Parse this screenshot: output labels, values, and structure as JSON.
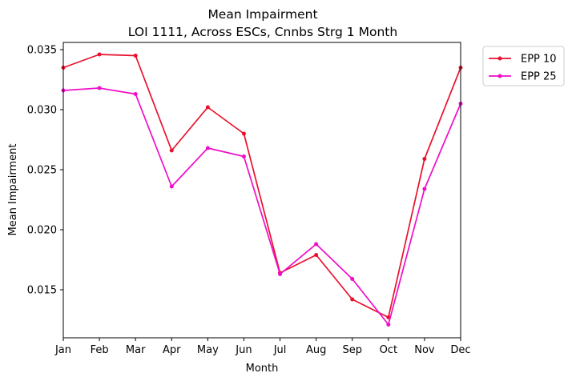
{
  "chart_data": {
    "type": "line",
    "title": "Mean Impairment",
    "subtitle": "LOI 1111, Across ESCs, Cnnbs Strg 1 Month",
    "xlabel": "Month",
    "ylabel": "Mean Impairment",
    "categories": [
      "Jan",
      "Feb",
      "Mar",
      "Apr",
      "May",
      "Jun",
      "Jul",
      "Aug",
      "Sep",
      "Oct",
      "Nov",
      "Dec"
    ],
    "ylim": [
      0.011,
      0.0356
    ],
    "yticks": [
      0.015,
      0.02,
      0.025,
      0.03,
      0.035
    ],
    "ytick_labels": [
      "0.015",
      "0.020",
      "0.025",
      "0.030",
      "0.035"
    ],
    "grid": false,
    "legend_position": "outside-top-right",
    "series": [
      {
        "name": "EPP 10",
        "color": "#e8112d",
        "values": [
          0.0335,
          0.0346,
          0.0345,
          0.0266,
          0.0302,
          0.028,
          0.0164,
          0.0179,
          0.0142,
          0.0127,
          0.0259,
          0.0335
        ]
      },
      {
        "name": "EPP 25",
        "color": "#f00dc8",
        "values": [
          0.0316,
          0.0318,
          0.0313,
          0.0236,
          0.0268,
          0.0261,
          0.0163,
          0.0188,
          0.0159,
          0.0121,
          0.0234,
          0.0305
        ]
      }
    ]
  }
}
